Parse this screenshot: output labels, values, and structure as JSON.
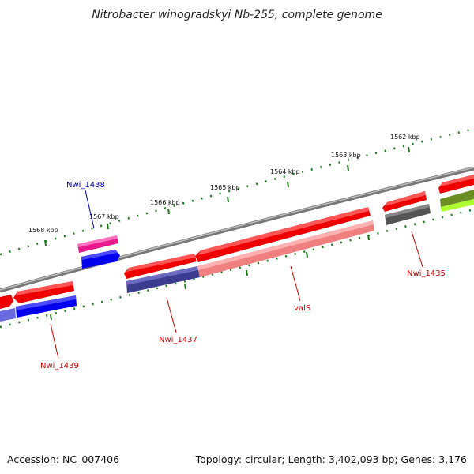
{
  "title": "Nitrobacter winogradskyi Nb-255, complete genome",
  "footer": {
    "accession": "Accession: NC_007406",
    "stats": "Topology: circular; Length: 3,402,093 bp; Genes: 3,176"
  },
  "colors": {
    "backbone": "#8a8a8a",
    "tick": "#1a7a1a",
    "label_red": "#cc0000",
    "label_blue": "#0000bb"
  },
  "ticks": [
    "1568 kbp",
    "1567 kbp",
    "1566 kbp",
    "1565 kbp",
    "1564 kbp",
    "1563 kbp",
    "1562 kbp"
  ],
  "genes": [
    {
      "label": "Nwi_1438",
      "label_color": "#0000bb"
    },
    {
      "label": "Nwi_1439",
      "label_color": "#cc0000"
    },
    {
      "label": "Nwi_1437",
      "label_color": "#cc0000"
    },
    {
      "label": "valS",
      "label_color": "#cc0000"
    },
    {
      "label": "Nwi_1435",
      "label_color": "#cc0000"
    }
  ]
}
